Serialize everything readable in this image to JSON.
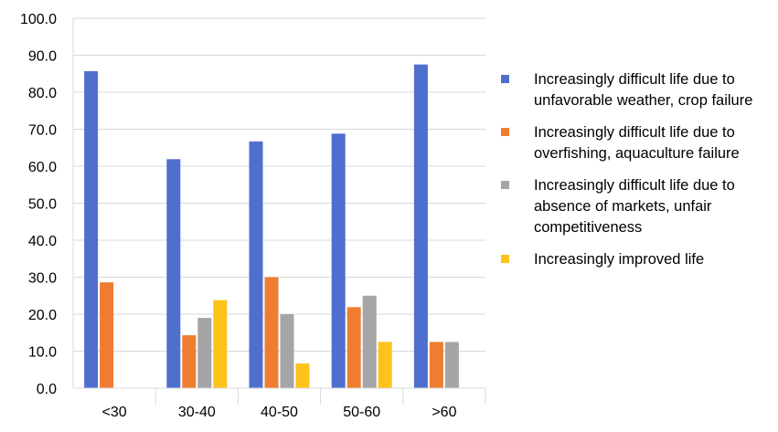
{
  "chart_data": {
    "type": "bar",
    "categories": [
      "<30",
      "30-40",
      "40-50",
      "50-60",
      ">60"
    ],
    "series": [
      {
        "name": "Increasingly difficult life due to unfavorable weather, crop failure",
        "color": "#4f6fcf",
        "values": [
          85.7,
          61.9,
          66.7,
          68.8,
          87.5
        ]
      },
      {
        "name": "Increasingly difficult life due to overfishing, aquaculture failure",
        "color": "#ee7d31",
        "values": [
          28.6,
          14.3,
          30.0,
          21.9,
          12.5
        ]
      },
      {
        "name": "Increasingly difficult life due to absence of markets, unfair competitiveness",
        "color": "#a5a5a5",
        "values": [
          0,
          19.0,
          20.0,
          25.0,
          12.5
        ]
      },
      {
        "name": "Increasingly improved life",
        "color": "#fcc31b",
        "values": [
          0,
          23.8,
          6.7,
          12.5,
          0
        ]
      }
    ],
    "yticks": [
      "0.0",
      "10.0",
      "20.0",
      "30.0",
      "40.0",
      "50.0",
      "60.0",
      "70.0",
      "80.0",
      "90.0",
      "100.0"
    ],
    "ylim": [
      0,
      100
    ],
    "grid": true,
    "legend_position": "right"
  }
}
